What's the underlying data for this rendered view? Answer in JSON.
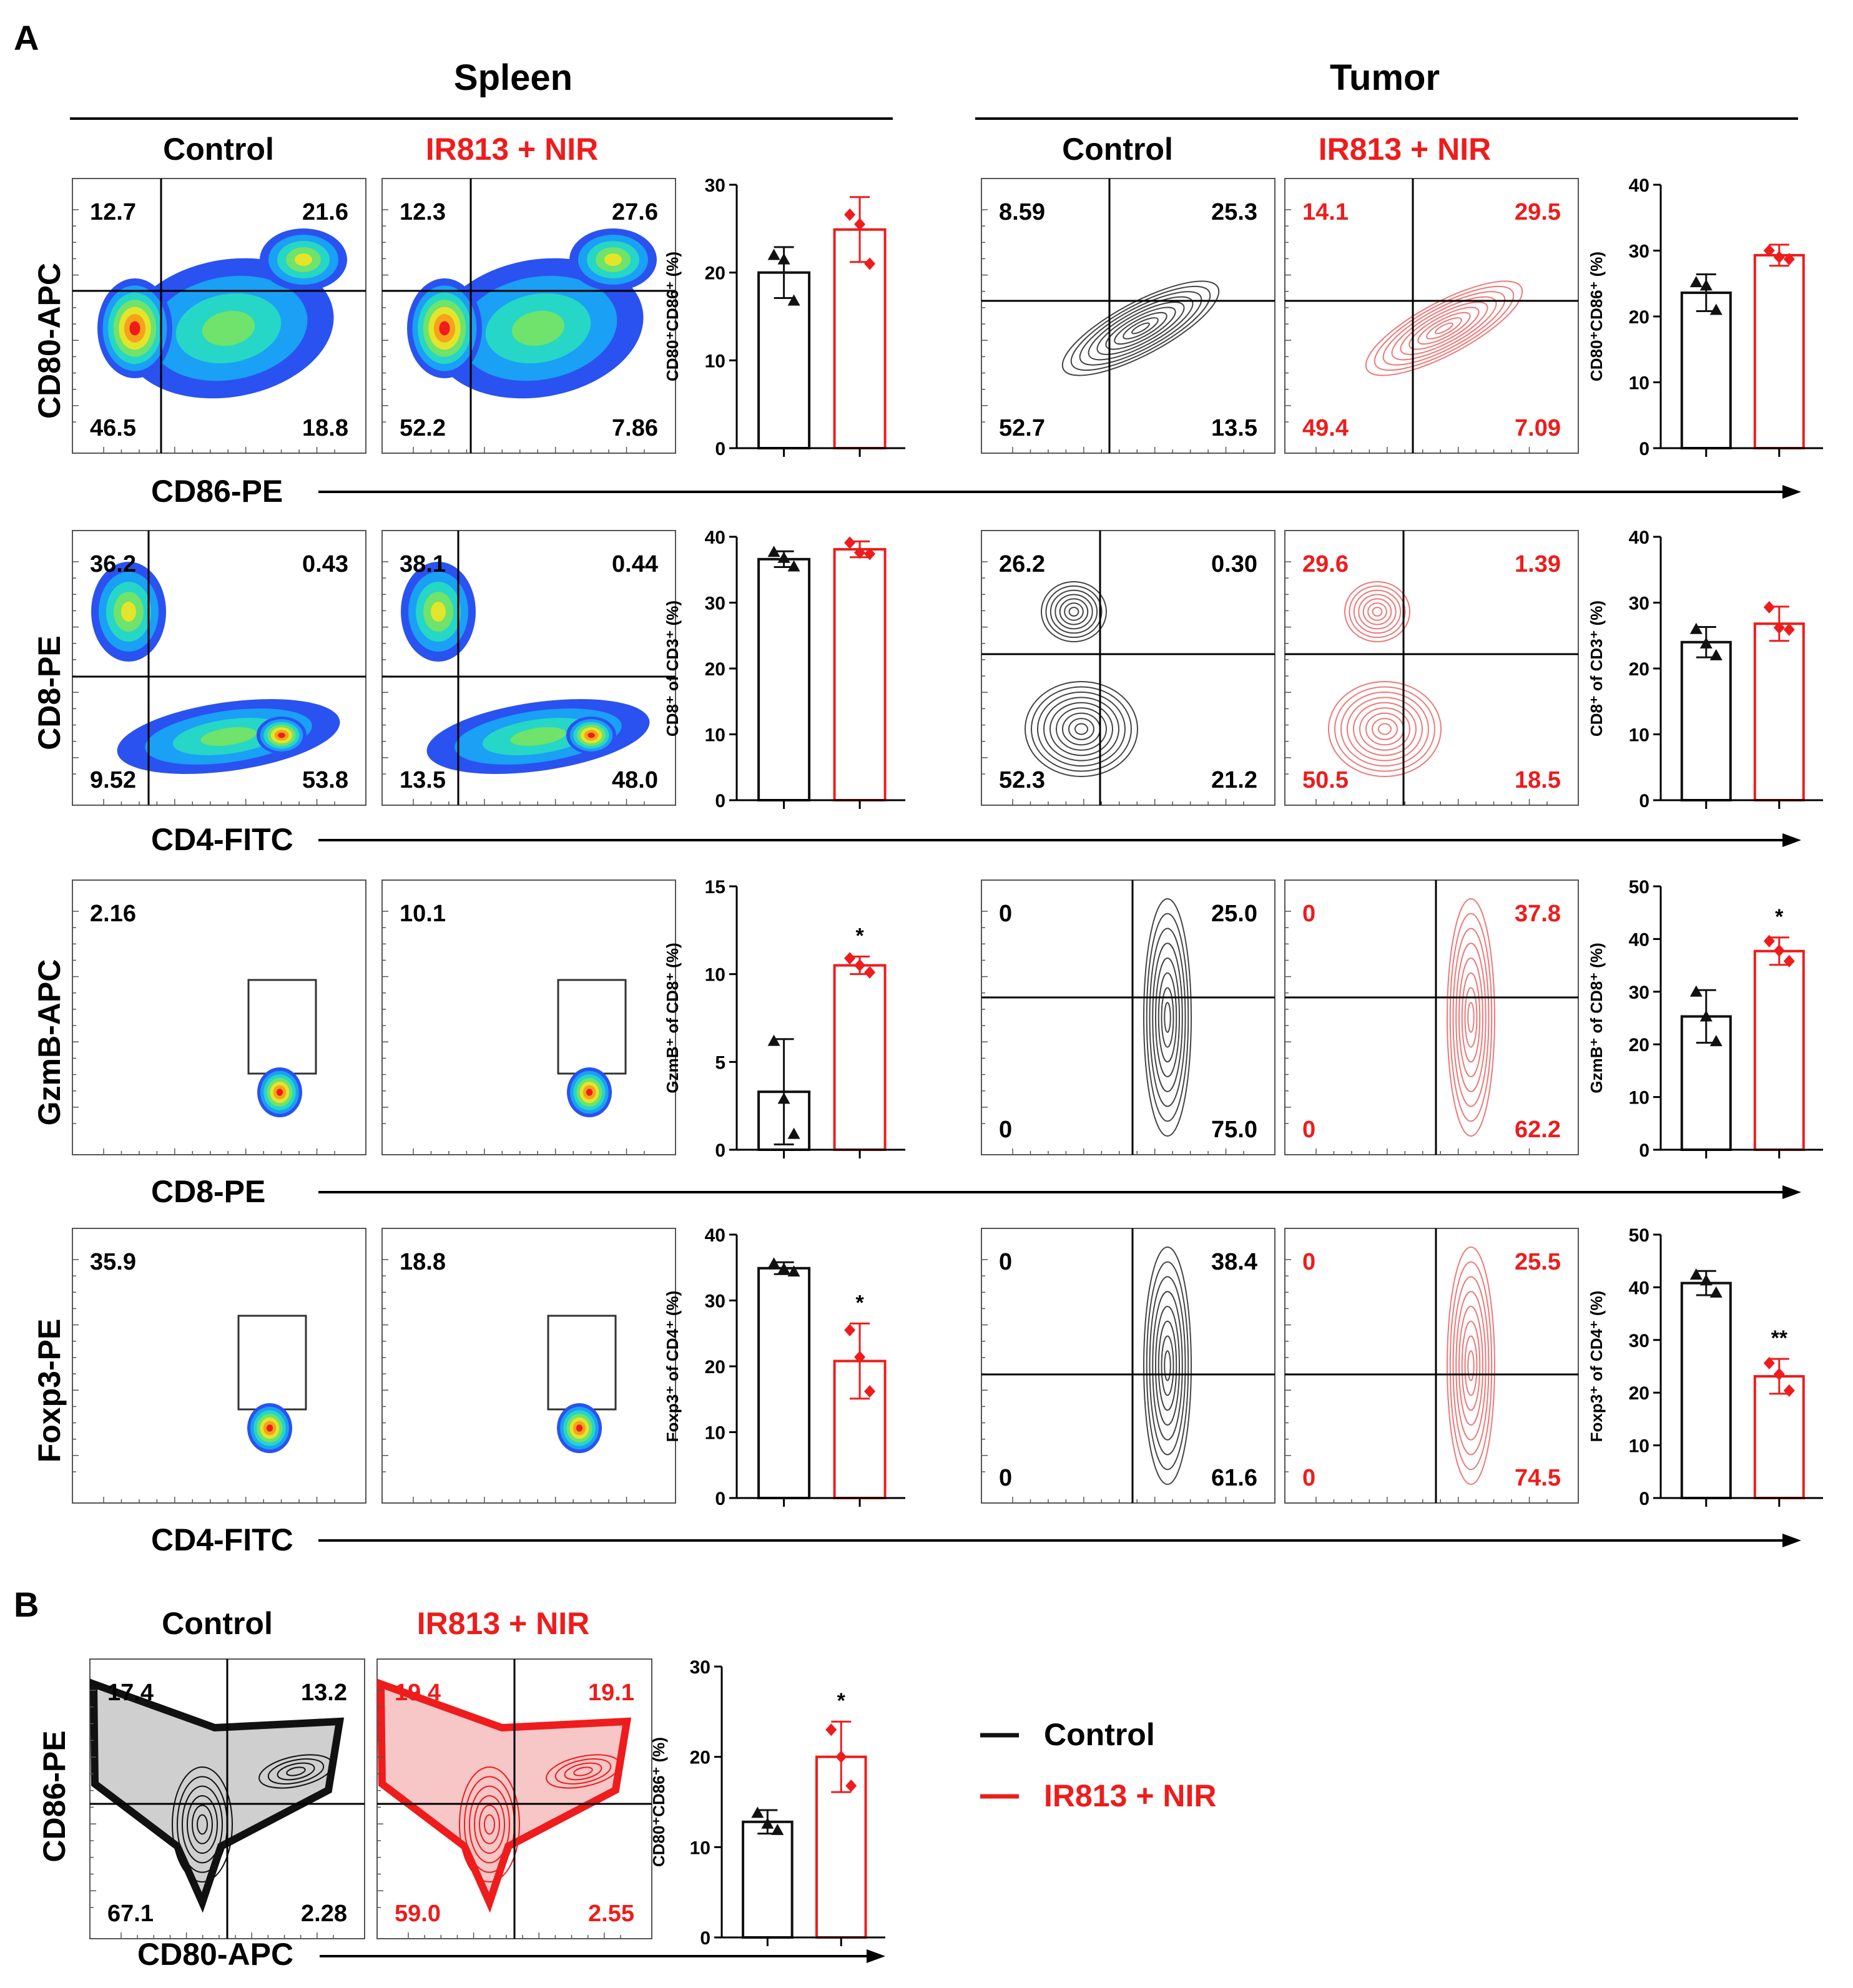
{
  "colors": {
    "control": "#111111",
    "treated": "#ee1c1c",
    "axis": "#000000"
  },
  "panel_a": {
    "letter": "A",
    "sections": [
      "Spleen",
      "Tumor"
    ],
    "group_headers": [
      "Control",
      "IR813 + NIR"
    ],
    "rows": [
      {
        "ylabel": "CD80-APC",
        "xlabel": "CD86-PE",
        "spleen_quads": [
          [
            "12.7",
            "21.6",
            "46.5",
            "18.8"
          ],
          [
            "12.3",
            "27.6",
            "52.2",
            "7.86"
          ]
        ],
        "tumor_quads": [
          [
            "8.59",
            "25.3",
            "52.7",
            "13.5"
          ],
          [
            "14.1",
            "29.5",
            "49.4",
            "7.09"
          ]
        ]
      },
      {
        "ylabel": "CD8-PE",
        "xlabel": "CD4-FITC",
        "spleen_quads": [
          [
            "36.2",
            "0.43",
            "9.52",
            "53.8"
          ],
          [
            "38.1",
            "0.44",
            "13.5",
            "48.0"
          ]
        ],
        "tumor_quads": [
          [
            "26.2",
            "0.30",
            "52.3",
            "21.2"
          ],
          [
            "29.6",
            "1.39",
            "50.5",
            "18.5"
          ]
        ]
      },
      {
        "ylabel": "GzmB-APC",
        "xlabel": "CD8-PE",
        "spleen_gate": [
          "2.16",
          "10.1"
        ],
        "tumor_quads": [
          [
            "0",
            "25.0",
            "0",
            "75.0"
          ],
          [
            "0",
            "37.8",
            "0",
            "62.2"
          ]
        ]
      },
      {
        "ylabel": "Foxp3-PE",
        "xlabel": "CD4-FITC",
        "spleen_gate": [
          "35.9",
          "18.8"
        ],
        "tumor_quads": [
          [
            "0",
            "38.4",
            "0",
            "61.6"
          ],
          [
            "0",
            "25.5",
            "0",
            "74.5"
          ]
        ]
      }
    ]
  },
  "panel_b": {
    "letter": "B",
    "group_headers": [
      "Control",
      "IR813 + NIR"
    ],
    "ylabel": "CD86-PE",
    "xlabel": "CD80-APC",
    "quads": [
      [
        "17.4",
        "13.2",
        "67.1",
        "2.28"
      ],
      [
        "19.4",
        "19.1",
        "59.0",
        "2.55"
      ]
    ]
  },
  "legend": {
    "items": [
      "Control",
      "IR813 + NIR"
    ]
  },
  "chart_data": [
    {
      "type": "bar",
      "panel": "A",
      "tissue": "Spleen",
      "ylabel": "CD80⁺CD86⁺ (%)",
      "ylim": [
        0,
        30
      ],
      "yticks": [
        0,
        10,
        20,
        30
      ],
      "categories": [
        "Control",
        "IR813 + NIR"
      ],
      "values": [
        20.0,
        24.9
      ],
      "errors": [
        2.9,
        3.7
      ],
      "points": [
        [
          22.0,
          21.5,
          16.8
        ],
        [
          26.6,
          25.5,
          21.0
        ]
      ],
      "markers": [
        "triangle",
        "diamond"
      ],
      "significance": [
        "",
        ""
      ]
    },
    {
      "type": "bar",
      "panel": "A",
      "tissue": "Tumor",
      "ylabel": "CD80⁺CD86⁺ (%)",
      "ylim": [
        0,
        40
      ],
      "yticks": [
        0,
        10,
        20,
        30,
        40
      ],
      "categories": [
        "Control",
        "IR813 + NIR"
      ],
      "values": [
        23.6,
        29.3
      ],
      "errors": [
        2.8,
        1.6
      ],
      "points": [
        [
          25.2,
          24.7,
          21.0
        ],
        [
          30.0,
          29.0,
          28.7
        ]
      ],
      "markers": [
        "triangle",
        "diamond"
      ],
      "significance": [
        "",
        ""
      ]
    },
    {
      "type": "bar",
      "panel": "A",
      "tissue": "Spleen",
      "ylabel": "CD8⁺ of CD3⁺ (%)",
      "ylim": [
        0,
        40
      ],
      "yticks": [
        0,
        10,
        20,
        30,
        40
      ],
      "categories": [
        "Control",
        "IR813 + NIR"
      ],
      "values": [
        36.6,
        38.1
      ],
      "errors": [
        1.2,
        1.2
      ],
      "points": [
        [
          37.7,
          36.8,
          35.5
        ],
        [
          39.1,
          37.6,
          37.4
        ]
      ],
      "markers": [
        "triangle",
        "diamond"
      ],
      "significance": [
        "",
        ""
      ]
    },
    {
      "type": "bar",
      "panel": "A",
      "tissue": "Tumor",
      "ylabel": "CD8⁺ of CD3⁺ (%)",
      "ylim": [
        0,
        40
      ],
      "yticks": [
        0,
        10,
        20,
        30,
        40
      ],
      "categories": [
        "Control",
        "IR813 + NIR"
      ],
      "values": [
        24.0,
        26.8
      ],
      "errors": [
        2.3,
        2.6
      ],
      "points": [
        [
          26.0,
          23.8,
          22.0
        ],
        [
          29.3,
          26.2,
          25.9
        ]
      ],
      "markers": [
        "triangle",
        "diamond"
      ],
      "significance": [
        "",
        ""
      ]
    },
    {
      "type": "bar",
      "panel": "A",
      "tissue": "Spleen",
      "ylabel": "GzmB⁺ of CD8⁺ (%)",
      "ylim": [
        0,
        15
      ],
      "yticks": [
        0,
        5,
        10,
        15
      ],
      "categories": [
        "Control",
        "IR813 + NIR"
      ],
      "values": [
        3.3,
        10.5
      ],
      "errors": [
        3.0,
        0.5
      ],
      "points": [
        [
          6.2,
          2.9,
          0.9
        ],
        [
          10.9,
          10.5,
          10.1
        ]
      ],
      "markers": [
        "triangle",
        "diamond"
      ],
      "significance": [
        "",
        "*"
      ]
    },
    {
      "type": "bar",
      "panel": "A",
      "tissue": "Tumor",
      "ylabel": "GzmB⁺ of CD8⁺ (%)",
      "ylim": [
        0,
        50
      ],
      "yticks": [
        0,
        10,
        20,
        30,
        40,
        50
      ],
      "categories": [
        "Control",
        "IR813 + NIR"
      ],
      "values": [
        25.3,
        37.7
      ],
      "errors": [
        5.0,
        2.6
      ],
      "points": [
        [
          30.0,
          25.3,
          20.6
        ],
        [
          39.6,
          37.8,
          35.8
        ]
      ],
      "markers": [
        "triangle",
        "diamond"
      ],
      "significance": [
        "",
        "*"
      ]
    },
    {
      "type": "bar",
      "panel": "A",
      "tissue": "Spleen",
      "ylabel": "Foxp3⁺ of CD4⁺ (%)",
      "ylim": [
        0,
        40
      ],
      "yticks": [
        0,
        10,
        20,
        30,
        40
      ],
      "categories": [
        "Control",
        "IR813 + NIR"
      ],
      "values": [
        34.9,
        20.8
      ],
      "errors": [
        0.9,
        5.7
      ],
      "points": [
        [
          35.6,
          34.8,
          34.4
        ],
        [
          25.5,
          21.4,
          16.2
        ]
      ],
      "markers": [
        "triangle",
        "diamond"
      ],
      "significance": [
        "",
        "*"
      ]
    },
    {
      "type": "bar",
      "panel": "A",
      "tissue": "Tumor",
      "ylabel": "Foxp3⁺ of CD4⁺ (%)",
      "ylim": [
        0,
        50
      ],
      "yticks": [
        0,
        10,
        20,
        30,
        40,
        50
      ],
      "categories": [
        "Control",
        "IR813 + NIR"
      ],
      "values": [
        40.8,
        23.1
      ],
      "errors": [
        2.3,
        3.3
      ],
      "points": [
        [
          42.4,
          41.3,
          39.0
        ],
        [
          25.6,
          23.5,
          20.4
        ]
      ],
      "markers": [
        "triangle",
        "diamond"
      ],
      "significance": [
        "",
        "**"
      ]
    },
    {
      "type": "bar",
      "panel": "B",
      "ylabel": "CD80⁺CD86⁺ (%)",
      "ylim": [
        0,
        30
      ],
      "yticks": [
        0,
        10,
        20,
        30
      ],
      "categories": [
        "Control",
        "IR813 + NIR"
      ],
      "values": [
        12.8,
        20.0
      ],
      "errors": [
        1.3,
        3.9
      ],
      "points": [
        [
          13.8,
          12.6,
          11.9
        ],
        [
          23.0,
          20.0,
          16.8
        ]
      ],
      "markers": [
        "triangle",
        "diamond"
      ],
      "significance": [
        "",
        "*"
      ]
    }
  ]
}
